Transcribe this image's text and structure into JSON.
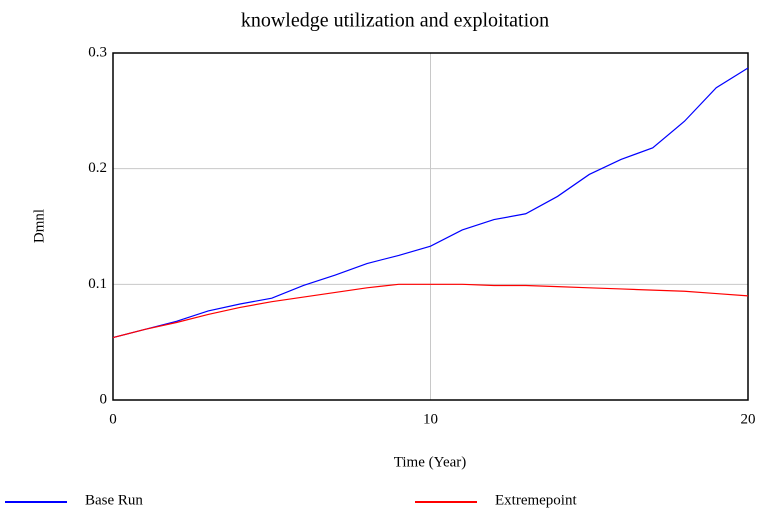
{
  "chart_data": {
    "type": "line",
    "title": "knowledge utilization and exploitation",
    "x_label": "Time (Year)",
    "y_label": "Dmnl",
    "x": [
      0,
      1,
      2,
      3,
      4,
      5,
      6,
      7,
      8,
      9,
      10,
      11,
      12,
      13,
      14,
      15,
      16,
      17,
      18,
      19,
      20
    ],
    "series": [
      {
        "name": "Base Run",
        "color": "#0000ff",
        "values": [
          0.054,
          0.061,
          0.068,
          0.077,
          0.083,
          0.088,
          0.099,
          0.108,
          0.118,
          0.125,
          0.133,
          0.147,
          0.156,
          0.161,
          0.176,
          0.195,
          0.208,
          0.218,
          0.241,
          0.27,
          0.287
        ]
      },
      {
        "name": "Extremepoint",
        "color": "#ff0000",
        "values": [
          0.054,
          0.061,
          0.067,
          0.074,
          0.08,
          0.085,
          0.089,
          0.093,
          0.097,
          0.1,
          0.1,
          0.1,
          0.099,
          0.099,
          0.098,
          0.097,
          0.096,
          0.095,
          0.094,
          0.092,
          0.09
        ]
      }
    ],
    "xlim": [
      0,
      20
    ],
    "xticks": [
      0,
      10,
      20
    ],
    "ylim": [
      0,
      0.3
    ],
    "yticks": [
      0,
      0.1,
      0.2,
      0.3
    ],
    "grid": true
  }
}
